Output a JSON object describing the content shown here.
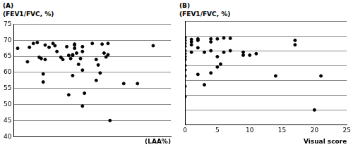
{
  "chart_data": [
    {
      "type": "scatter",
      "title": "(A)",
      "y_label": "(FEV1/FVC, %)",
      "x_label": "(LAA%)",
      "x": [
        2,
        7,
        8,
        10,
        12,
        13,
        14,
        15,
        15,
        16,
        16,
        18,
        20,
        21,
        22,
        24,
        25,
        27,
        28,
        28,
        29,
        30,
        30,
        30,
        31,
        31,
        31,
        32,
        33,
        34,
        35,
        35,
        35,
        35,
        36,
        40,
        42,
        42,
        43,
        44,
        45,
        46,
        47,
        48,
        48,
        49,
        56,
        63,
        71
      ],
      "values": [
        67.5,
        63.3,
        67.8,
        69,
        69.3,
        64.7,
        64.3,
        59.5,
        57,
        64,
        68.5,
        67.8,
        69,
        68.3,
        66.5,
        64.7,
        64,
        68,
        65.3,
        53,
        64.3,
        65.3,
        65.5,
        59,
        68.5,
        68.8,
        67.5,
        66,
        62.5,
        64.3,
        68,
        66.5,
        60.7,
        49.5,
        53.5,
        69,
        64,
        57.5,
        62.3,
        59.8,
        68.8,
        66,
        64.8,
        69,
        65.5,
        45,
        56.5,
        56.5,
        68.3
      ],
      "xlim": [
        0,
        80
      ],
      "ylim": [
        40,
        75
      ],
      "yticks": [
        40,
        45,
        50,
        55,
        60,
        65,
        70,
        75
      ],
      "grid": true,
      "tick_labels": "y",
      "color": "#000000",
      "marker": "circle"
    },
    {
      "type": "scatter",
      "title": "(B)",
      "y_label": "(FEV1/FVC, %)",
      "x_label": "Visual score",
      "x": [
        0,
        0,
        0,
        0,
        0,
        0,
        0,
        0,
        0,
        0,
        0,
        0,
        0,
        1,
        1,
        1,
        1,
        2,
        2,
        2,
        2,
        3,
        3,
        4,
        4,
        4,
        4,
        5,
        5,
        5,
        5.5,
        6,
        6,
        7,
        7,
        9,
        9,
        10,
        11,
        14,
        17,
        17,
        20,
        21
      ],
      "values": [
        69.5,
        68.5,
        67.5,
        66.5,
        65,
        64,
        63,
        62,
        60,
        58.5,
        56.5,
        53,
        49.5,
        68.8,
        68,
        67,
        64.5,
        69,
        68.5,
        66,
        57,
        64.5,
        53.5,
        69,
        68,
        65,
        57.5,
        69,
        63,
        59.5,
        60.5,
        69.3,
        64.5,
        69.2,
        65,
        64.5,
        63.5,
        63.5,
        64,
        56.5,
        68.5,
        67,
        45,
        56.5
      ],
      "xlim": [
        0,
        25
      ],
      "xticks": [
        0,
        5,
        10,
        15,
        20,
        25
      ],
      "ylim": [
        40,
        75
      ],
      "yticks": [
        40,
        45,
        50,
        55,
        60,
        65,
        70,
        75
      ],
      "grid": true,
      "tick_labels": "x",
      "color": "#000000",
      "marker": "circle"
    }
  ]
}
